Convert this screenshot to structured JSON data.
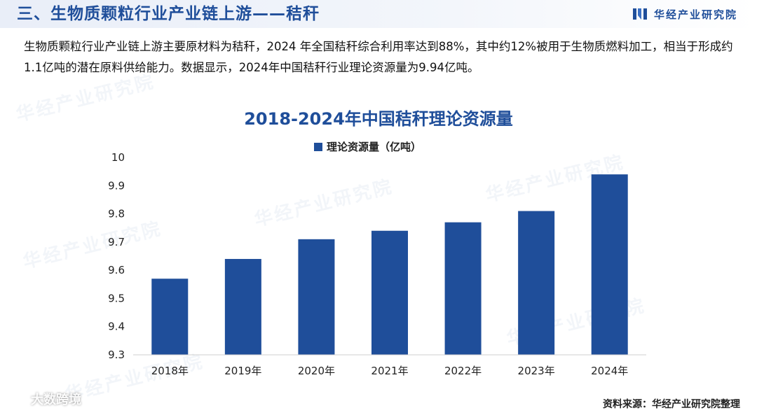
{
  "header": {
    "title": "三、生物质颗粒行业产业链上游——秸秆",
    "brand": "华经产业研究院"
  },
  "intro": {
    "text": "生物质颗粒行业产业链上游主要原材料为秸秆，2024 年全国秸秆综合利用率达到88%，其中约12%被用于生物质燃料加工，相当于形成约1.1亿吨的潜在原料供给能力。数据显示，2024年中国秸秆行业理论资源量为9.94亿吨。"
  },
  "chart_data": {
    "type": "bar",
    "title": "2018-2024年中国秸秆理论资源量",
    "categories": [
      "2018年",
      "2019年",
      "2020年",
      "2021年",
      "2022年",
      "2023年",
      "2024年"
    ],
    "series": [
      {
        "name": "理论资源量（亿吨）",
        "values": [
          9.57,
          9.64,
          9.71,
          9.74,
          9.77,
          9.81,
          9.94
        ]
      }
    ],
    "yticks": [
      "9.3",
      "9.4",
      "9.5",
      "9.6",
      "9.7",
      "9.8",
      "9.9",
      "10"
    ],
    "ylim": [
      9.3,
      10
    ],
    "legend_position": "top-center",
    "color": "#1f4e9a"
  },
  "footer": {
    "source": "资料来源：华经产业研究院整理",
    "corner_watermark": "大数跨境"
  },
  "watermark_text": "华经产业研究院"
}
